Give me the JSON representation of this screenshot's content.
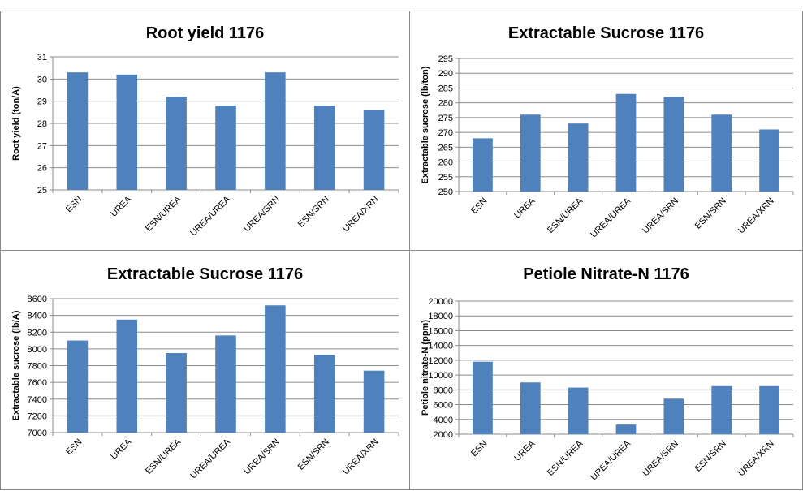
{
  "chart_data": [
    {
      "type": "bar",
      "title": "Root yield 1176",
      "ylabel": "Root yield (ton/A)",
      "xlabel": "",
      "categories": [
        "ESN",
        "UREA",
        "ESN/UREA",
        "UREA/UREA",
        "UREA/SRN",
        "ESN/SRN",
        "UREA/XRN"
      ],
      "values": [
        30.3,
        30.2,
        29.2,
        28.8,
        30.3,
        28.8,
        28.6
      ],
      "ylim": [
        25,
        31
      ],
      "yticks": [
        "25",
        "26",
        "27",
        "28",
        "29",
        "30",
        "31"
      ],
      "grid": true,
      "color": "#4f81bd"
    },
    {
      "type": "bar",
      "title": "Extractable Sucrose 1176",
      "ylabel": "Extractable sucrose (lb/ton)",
      "xlabel": "",
      "categories": [
        "ESN",
        "UREA",
        "ESN/UREA",
        "UREA/UREA",
        "UREA/SRN",
        "ESN/SRN",
        "UREA/XRN"
      ],
      "values": [
        268,
        276,
        273,
        283,
        282,
        276,
        271
      ],
      "ylim": [
        250,
        295
      ],
      "yticks": [
        "250",
        "255",
        "260",
        "265",
        "270",
        "275",
        "280",
        "285",
        "290",
        "295"
      ],
      "grid": true,
      "color": "#4f81bd"
    },
    {
      "type": "bar",
      "title": "Extractable Sucrose 1176",
      "ylabel": "Extractable sucrose (lb/A)",
      "xlabel": "",
      "categories": [
        "ESN",
        "UREA",
        "ESN/UREA",
        "UREA/UREA",
        "UREA/SRN",
        "ESN/SRN",
        "UREA/XRN"
      ],
      "values": [
        8100,
        8350,
        7950,
        8160,
        8520,
        7930,
        7740
      ],
      "ylim": [
        7000,
        8600
      ],
      "yticks": [
        "7000",
        "7200",
        "7400",
        "7600",
        "7800",
        "8000",
        "8200",
        "8400",
        "8600"
      ],
      "grid": true,
      "color": "#4f81bd"
    },
    {
      "type": "bar",
      "title": "Petiole Nitrate-N 1176",
      "ylabel": "Petiole nitrate-N (ppm)",
      "xlabel": "",
      "categories": [
        "ESN",
        "UREA",
        "ESN/UREA",
        "UREA/UREA",
        "UREA/SRN",
        "ESN/SRN",
        "UREA/XRN"
      ],
      "values": [
        11800,
        9000,
        8300,
        3300,
        6800,
        8500,
        8500
      ],
      "ylim": [
        2000,
        20000
      ],
      "yticks": [
        "2000",
        "4000",
        "6000",
        "8000",
        "10000",
        "12000",
        "14000",
        "16000",
        "18000",
        "20000"
      ],
      "grid": true,
      "color": "#4f81bd"
    }
  ]
}
